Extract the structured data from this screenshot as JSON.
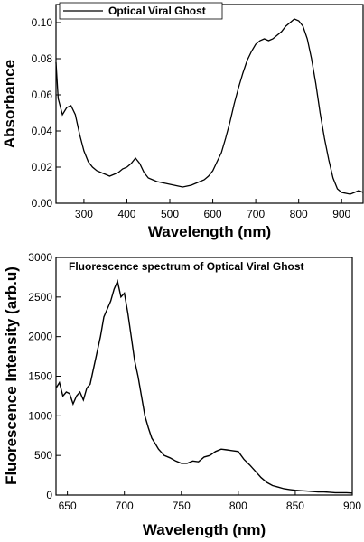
{
  "chart_data": [
    {
      "type": "line",
      "xlabel": "Wavelength (nm)",
      "ylabel": "Absorbance",
      "xlim": [
        235,
        950
      ],
      "ylim": [
        0,
        0.11
      ],
      "xticks": [
        300,
        400,
        500,
        600,
        700,
        800,
        900
      ],
      "yticks": [
        0.0,
        0.02,
        0.04,
        0.06,
        0.08,
        0.1
      ],
      "ytick_labels": [
        "0.00",
        "0.02",
        "0.04",
        "0.06",
        "0.08",
        "0.10"
      ],
      "legend_position": "top-left",
      "series": [
        {
          "name": "Optical Viral Ghost",
          "color": "#000000",
          "x": [
            235,
            240,
            250,
            260,
            270,
            280,
            290,
            300,
            310,
            320,
            330,
            340,
            350,
            360,
            370,
            380,
            390,
            400,
            410,
            420,
            430,
            440,
            450,
            460,
            470,
            480,
            490,
            500,
            510,
            520,
            530,
            540,
            550,
            560,
            570,
            580,
            590,
            600,
            610,
            620,
            630,
            640,
            650,
            660,
            670,
            680,
            690,
            700,
            710,
            720,
            730,
            740,
            750,
            760,
            770,
            780,
            790,
            800,
            810,
            820,
            830,
            840,
            850,
            860,
            870,
            880,
            890,
            900,
            910,
            920,
            930,
            940,
            950
          ],
          "y": [
            0.078,
            0.058,
            0.049,
            0.053,
            0.054,
            0.049,
            0.038,
            0.029,
            0.023,
            0.02,
            0.018,
            0.017,
            0.016,
            0.015,
            0.016,
            0.017,
            0.019,
            0.02,
            0.022,
            0.025,
            0.022,
            0.017,
            0.014,
            0.013,
            0.012,
            0.0115,
            0.011,
            0.0105,
            0.01,
            0.0095,
            0.009,
            0.0095,
            0.01,
            0.011,
            0.012,
            0.013,
            0.015,
            0.018,
            0.023,
            0.028,
            0.036,
            0.045,
            0.055,
            0.064,
            0.072,
            0.079,
            0.084,
            0.088,
            0.09,
            0.091,
            0.09,
            0.091,
            0.093,
            0.095,
            0.098,
            0.1,
            0.102,
            0.101,
            0.098,
            0.091,
            0.08,
            0.066,
            0.05,
            0.036,
            0.024,
            0.014,
            0.008,
            0.006,
            0.0055,
            0.005,
            0.006,
            0.007,
            0.006
          ]
        }
      ]
    },
    {
      "type": "line",
      "title": "Fluorescence spectrum of Optical Viral Ghost",
      "xlabel": "Wavelength (nm)",
      "ylabel": "Fluorescence Intensity (arb.u)",
      "xlim": [
        640,
        900
      ],
      "ylim": [
        0,
        3000
      ],
      "xticks": [
        650,
        700,
        750,
        800,
        850,
        900
      ],
      "yticks": [
        0,
        500,
        1000,
        1500,
        2000,
        2500,
        3000
      ],
      "ytick_labels": [
        "0",
        "500",
        "1000",
        "1500",
        "2000",
        "2500",
        "3000"
      ],
      "series": [
        {
          "color": "#000000",
          "x": [
            640,
            643,
            646,
            649,
            652,
            655,
            658,
            661,
            664,
            667,
            670,
            673,
            676,
            679,
            682,
            685,
            688,
            691,
            694,
            697,
            700,
            703,
            706,
            709,
            712,
            715,
            718,
            721,
            724,
            727,
            730,
            735,
            740,
            745,
            750,
            755,
            760,
            765,
            770,
            775,
            780,
            785,
            790,
            795,
            800,
            805,
            810,
            815,
            820,
            825,
            830,
            835,
            840,
            845,
            850,
            855,
            860,
            865,
            870,
            875,
            880,
            885,
            890,
            895,
            900
          ],
          "y": [
            1350,
            1420,
            1250,
            1300,
            1280,
            1150,
            1250,
            1300,
            1200,
            1350,
            1400,
            1600,
            1800,
            2000,
            2250,
            2350,
            2450,
            2600,
            2700,
            2500,
            2550,
            2300,
            2000,
            1700,
            1500,
            1250,
            1000,
            850,
            720,
            650,
            580,
            500,
            470,
            430,
            400,
            400,
            430,
            420,
            480,
            500,
            550,
            580,
            570,
            560,
            550,
            450,
            380,
            300,
            220,
            160,
            120,
            100,
            80,
            70,
            60,
            55,
            50,
            45,
            40,
            40,
            35,
            30,
            30,
            30,
            25
          ]
        }
      ]
    }
  ]
}
